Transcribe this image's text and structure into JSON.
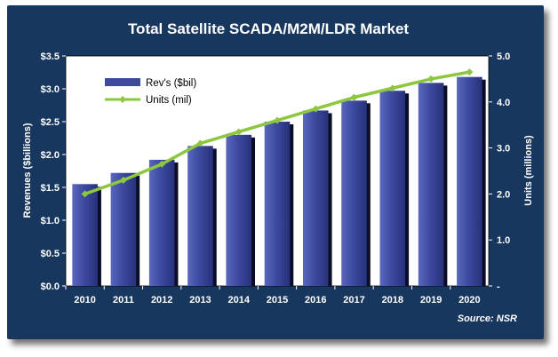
{
  "chart_data": {
    "type": "bar",
    "title": "Total  Satellite SCADA/M2M/LDR Market",
    "categories": [
      "2010",
      "2011",
      "2012",
      "2013",
      "2014",
      "2015",
      "2016",
      "2017",
      "2018",
      "2019",
      "2020"
    ],
    "series": [
      {
        "name": "Rev's ($bil)",
        "type": "bar",
        "axis": "left",
        "color": "#3d4aa0",
        "values": [
          1.55,
          1.72,
          1.92,
          2.13,
          2.3,
          2.5,
          2.67,
          2.82,
          2.97,
          3.09,
          3.18
        ]
      },
      {
        "name": "Units (mil)",
        "type": "line",
        "axis": "right",
        "color": "#8dc63f",
        "values": [
          2.0,
          2.3,
          2.65,
          3.1,
          3.35,
          3.6,
          3.85,
          4.1,
          4.3,
          4.5,
          4.65
        ]
      }
    ],
    "ylabel": "Revenues ($billions)",
    "ylim": [
      0,
      3.5
    ],
    "yticks": [
      "$0.0",
      "$0.5",
      "$1.0",
      "$1.5",
      "$2.0",
      "$2.5",
      "$3.0",
      "$3.5"
    ],
    "y2label": "Units (millions)",
    "y2lim": [
      0,
      5
    ],
    "y2ticks": [
      "-",
      "1.0",
      "2.0",
      "3.0",
      "4.0",
      "5.0"
    ],
    "legend_position": "top-left",
    "grid": false,
    "source": "Source: NSR"
  }
}
